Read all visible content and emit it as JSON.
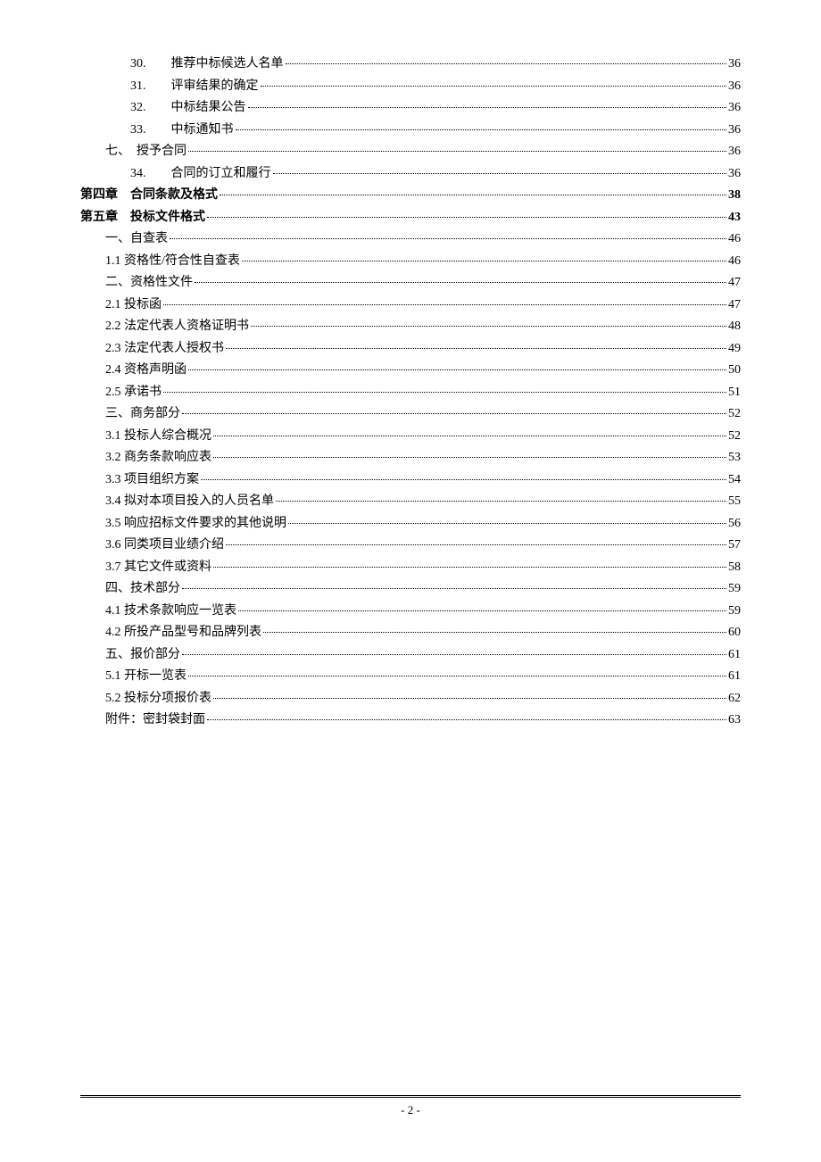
{
  "entries": [
    {
      "label": "30.　　推荐中标候选人名单",
      "page": "36",
      "indent": 2,
      "bold": false
    },
    {
      "label": "31.　　评审结果的确定",
      "page": "36",
      "indent": 2,
      "bold": false
    },
    {
      "label": "32.　　中标结果公告",
      "page": "36",
      "indent": 2,
      "bold": false
    },
    {
      "label": "33.　　中标通知书",
      "page": "36",
      "indent": 2,
      "bold": false
    },
    {
      "label": "七、　授予合同",
      "page": "36",
      "indent": 1,
      "bold": false
    },
    {
      "label": "34.　　合同的订立和履行",
      "page": "36",
      "indent": 2,
      "bold": false
    },
    {
      "label": "第四章　合同条款及格式",
      "page": "38",
      "indent": 0,
      "bold": true
    },
    {
      "label": "第五章　投标文件格式",
      "page": "43",
      "indent": 0,
      "bold": true
    },
    {
      "label": "一、自查表",
      "page": "46",
      "indent": 1,
      "bold": false
    },
    {
      "label": "1.1 资格性/符合性自查表",
      "page": "46",
      "indent": 1,
      "bold": false
    },
    {
      "label": "二、资格性文件",
      "page": "47",
      "indent": 1,
      "bold": false
    },
    {
      "label": "2.1 投标函",
      "page": "47",
      "indent": 1,
      "bold": false
    },
    {
      "label": "2.2 法定代表人资格证明书",
      "page": "48",
      "indent": 1,
      "bold": false
    },
    {
      "label": "2.3 法定代表人授权书",
      "page": "49",
      "indent": 1,
      "bold": false
    },
    {
      "label": "2.4 资格声明函",
      "page": "50",
      "indent": 1,
      "bold": false
    },
    {
      "label": "2.5 承诺书",
      "page": "51",
      "indent": 1,
      "bold": false
    },
    {
      "label": "三、商务部分",
      "page": "52",
      "indent": 1,
      "bold": false
    },
    {
      "label": "3.1 投标人综合概况",
      "page": "52",
      "indent": 1,
      "bold": false
    },
    {
      "label": "3.2 商务条款响应表",
      "page": "53",
      "indent": 1,
      "bold": false
    },
    {
      "label": "3.3 项目组织方案",
      "page": "54",
      "indent": 1,
      "bold": false
    },
    {
      "label": "3.4 拟对本项目投入的人员名单",
      "page": "55",
      "indent": 1,
      "bold": false
    },
    {
      "label": "3.5 响应招标文件要求的其他说明",
      "page": "56",
      "indent": 1,
      "bold": false
    },
    {
      "label": "3.6 同类项目业绩介绍",
      "page": "57",
      "indent": 1,
      "bold": false
    },
    {
      "label": "3.7 其它文件或资料",
      "page": "58",
      "indent": 1,
      "bold": false
    },
    {
      "label": "四、技术部分",
      "page": "59",
      "indent": 1,
      "bold": false
    },
    {
      "label": "4.1 技术条款响应一览表",
      "page": "59",
      "indent": 1,
      "bold": false
    },
    {
      "label": "4.2 所投产品型号和品牌列表",
      "page": "60",
      "indent": 1,
      "bold": false
    },
    {
      "label": "五、报价部分",
      "page": "61",
      "indent": 1,
      "bold": false
    },
    {
      "label": "5.1 开标一览表",
      "page": "61",
      "indent": 1,
      "bold": false
    },
    {
      "label": "5.2 投标分项报价表",
      "page": "62",
      "indent": 1,
      "bold": false
    },
    {
      "label": "附件：密封袋封面",
      "page": "63",
      "indent": 1,
      "bold": false
    }
  ],
  "footer": {
    "pagenum": "- 2 -"
  }
}
